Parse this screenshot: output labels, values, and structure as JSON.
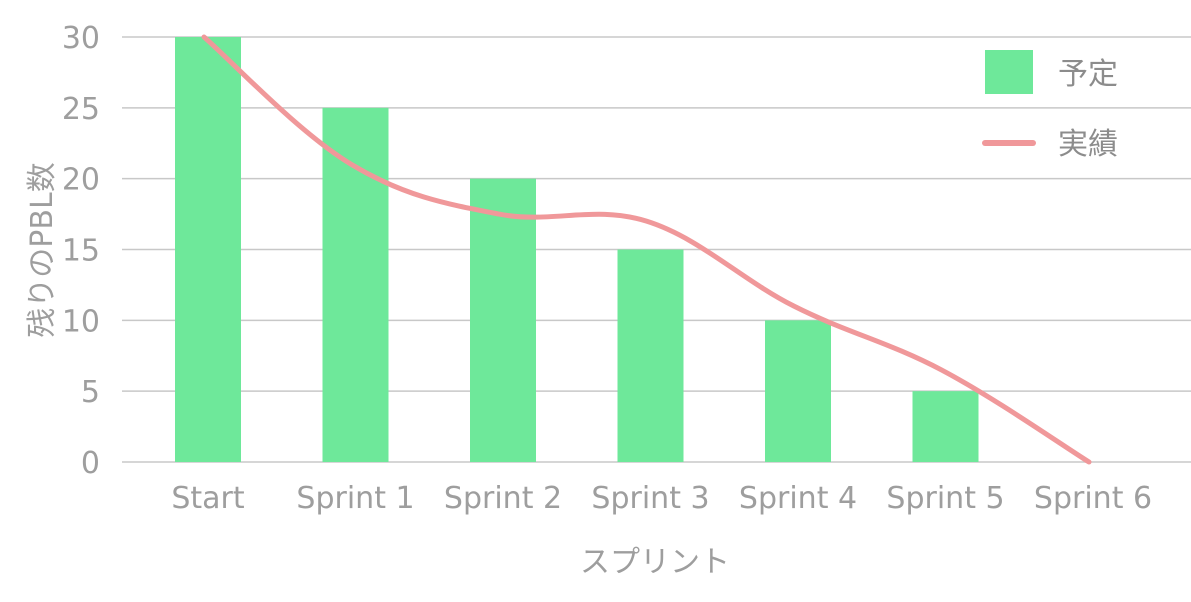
{
  "chart_data": {
    "type": "bar",
    "categories": [
      "Start",
      "Sprint 1",
      "Sprint 2",
      "Sprint 3",
      "Sprint 4",
      "Sprint 5",
      "Sprint 6"
    ],
    "series": [
      {
        "name": "予定",
        "type": "bar",
        "color": "#6ee89a",
        "values": [
          30,
          25,
          20,
          15,
          10,
          5,
          0
        ]
      },
      {
        "name": "実績",
        "type": "line",
        "color": "#f0989a",
        "values": [
          30,
          21,
          17.5,
          17,
          11,
          6.5,
          0
        ]
      }
    ],
    "xlabel": "スプリント",
    "ylabel": "残りのPBL数",
    "ylim": [
      0,
      30
    ],
    "yticks": [
      0,
      5,
      10,
      15,
      20,
      25,
      30
    ],
    "grid": true,
    "legend_position": "top-right"
  }
}
